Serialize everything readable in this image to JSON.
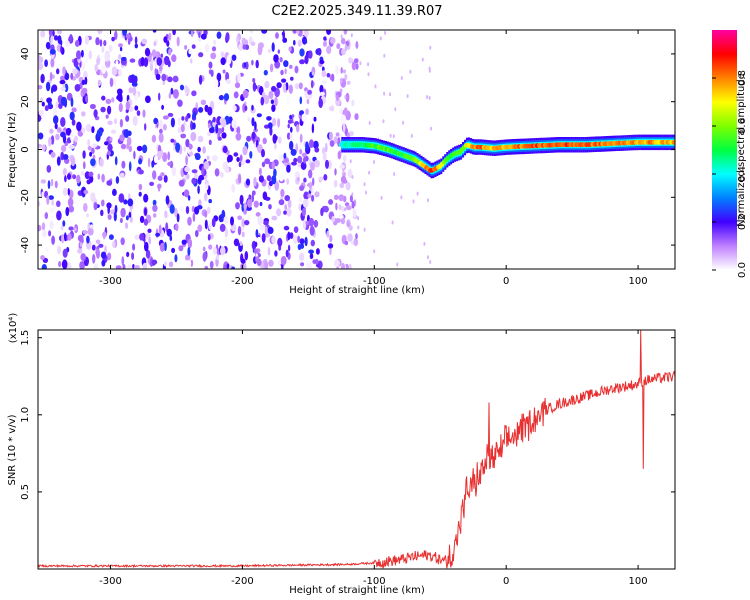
{
  "figure_title": "C2E2.2025.349.11.39.R07",
  "chart_data": [
    {
      "type": "heatmap",
      "title": "C2E2.2025.349.11.39.R07",
      "xlabel": "Height of straight line (km)",
      "ylabel": "Frequency (Hz)",
      "xlim": [
        -355,
        128
      ],
      "ylim": [
        -50,
        50
      ],
      "xticks": [
        -300,
        -200,
        -100,
        0,
        100
      ],
      "xtick_labels": [
        "-300",
        "-200",
        "-100",
        "0",
        "100"
      ],
      "yticks": [
        -40,
        -20,
        0,
        20,
        40
      ],
      "ytick_labels": [
        "-40",
        "-20",
        "0",
        "20",
        "40"
      ],
      "colorbar": {
        "label": "Normalized spectral amplitude",
        "range": [
          0,
          1
        ],
        "ticks": [
          0.0,
          0.2,
          0.4,
          0.6,
          0.8
        ],
        "tick_labels": [
          "0.0",
          "0.2",
          "0.4",
          "0.6",
          "0.8"
        ],
        "colormap": [
          "#ffffff",
          "#c080ff",
          "#4000ff",
          "#0080ff",
          "#00ffff",
          "#00ff40",
          "#80ff00",
          "#ffff00",
          "#ff8000",
          "#ff0000",
          "#ff00a0"
        ]
      },
      "noise_region": {
        "x_from": -355,
        "x_to": -125,
        "amplitude": 0.25
      },
      "ridge": {
        "x": [
          -125,
          -110,
          -100,
          -90,
          -80,
          -70,
          -62,
          -57,
          -50,
          -45,
          -40,
          -35,
          -30,
          -25,
          -20,
          -10,
          0,
          20,
          40,
          60,
          80,
          100,
          128
        ],
        "y": [
          2,
          2,
          1.5,
          0,
          -2,
          -4,
          -7,
          -9,
          -7,
          -4,
          -2,
          -1,
          2,
          1,
          1,
          0.5,
          1,
          1.5,
          2,
          2,
          2.5,
          3,
          3
        ],
        "peak_amplitude": [
          0.45,
          0.5,
          0.6,
          0.6,
          0.55,
          0.6,
          0.85,
          0.95,
          0.8,
          0.6,
          0.55,
          0.6,
          0.7,
          0.85,
          0.9,
          0.8,
          0.85,
          0.9,
          0.9,
          0.9,
          0.85,
          0.85,
          0.8
        ]
      }
    },
    {
      "type": "line",
      "xlabel": "Height of straight line (km)",
      "ylabel": "SNR (10 * v/v)",
      "y_multiplier": "(x10⁴)",
      "xlim": [
        -355,
        128
      ],
      "ylim": [
        0,
        1.55
      ],
      "xticks": [
        -300,
        -200,
        -100,
        0,
        100
      ],
      "xtick_labels": [
        "-300",
        "-200",
        "-100",
        "0",
        "100"
      ],
      "yticks": [
        0.5,
        1.0,
        1.5
      ],
      "ytick_labels": [
        "0.5",
        "1.0",
        "1.5"
      ],
      "series": [
        {
          "name": "SNR",
          "color": "#e83030",
          "x": [
            -355,
            -300,
            -200,
            -120,
            -100,
            -80,
            -70,
            -60,
            -55,
            -50,
            -45,
            -40,
            -35,
            -30,
            -25,
            -20,
            -15,
            -10,
            -5,
            0,
            10,
            20,
            30,
            40,
            60,
            80,
            100,
            104,
            110,
            128
          ],
          "y": [
            0.02,
            0.02,
            0.02,
            0.03,
            0.04,
            0.06,
            0.08,
            0.09,
            0.08,
            0.06,
            0.05,
            0.12,
            0.3,
            0.5,
            0.55,
            0.6,
            0.7,
            0.72,
            0.75,
            0.82,
            0.9,
            0.97,
            1.03,
            1.07,
            1.12,
            1.17,
            1.2,
            1.22,
            1.23,
            1.25
          ]
        }
      ],
      "annotations": [
        {
          "x": -13,
          "y": 1.08,
          "note": "spike"
        },
        {
          "x": 102,
          "y": 1.55,
          "note": "spike"
        },
        {
          "x": 104,
          "y": 0.65,
          "note": "dip"
        }
      ]
    }
  ]
}
